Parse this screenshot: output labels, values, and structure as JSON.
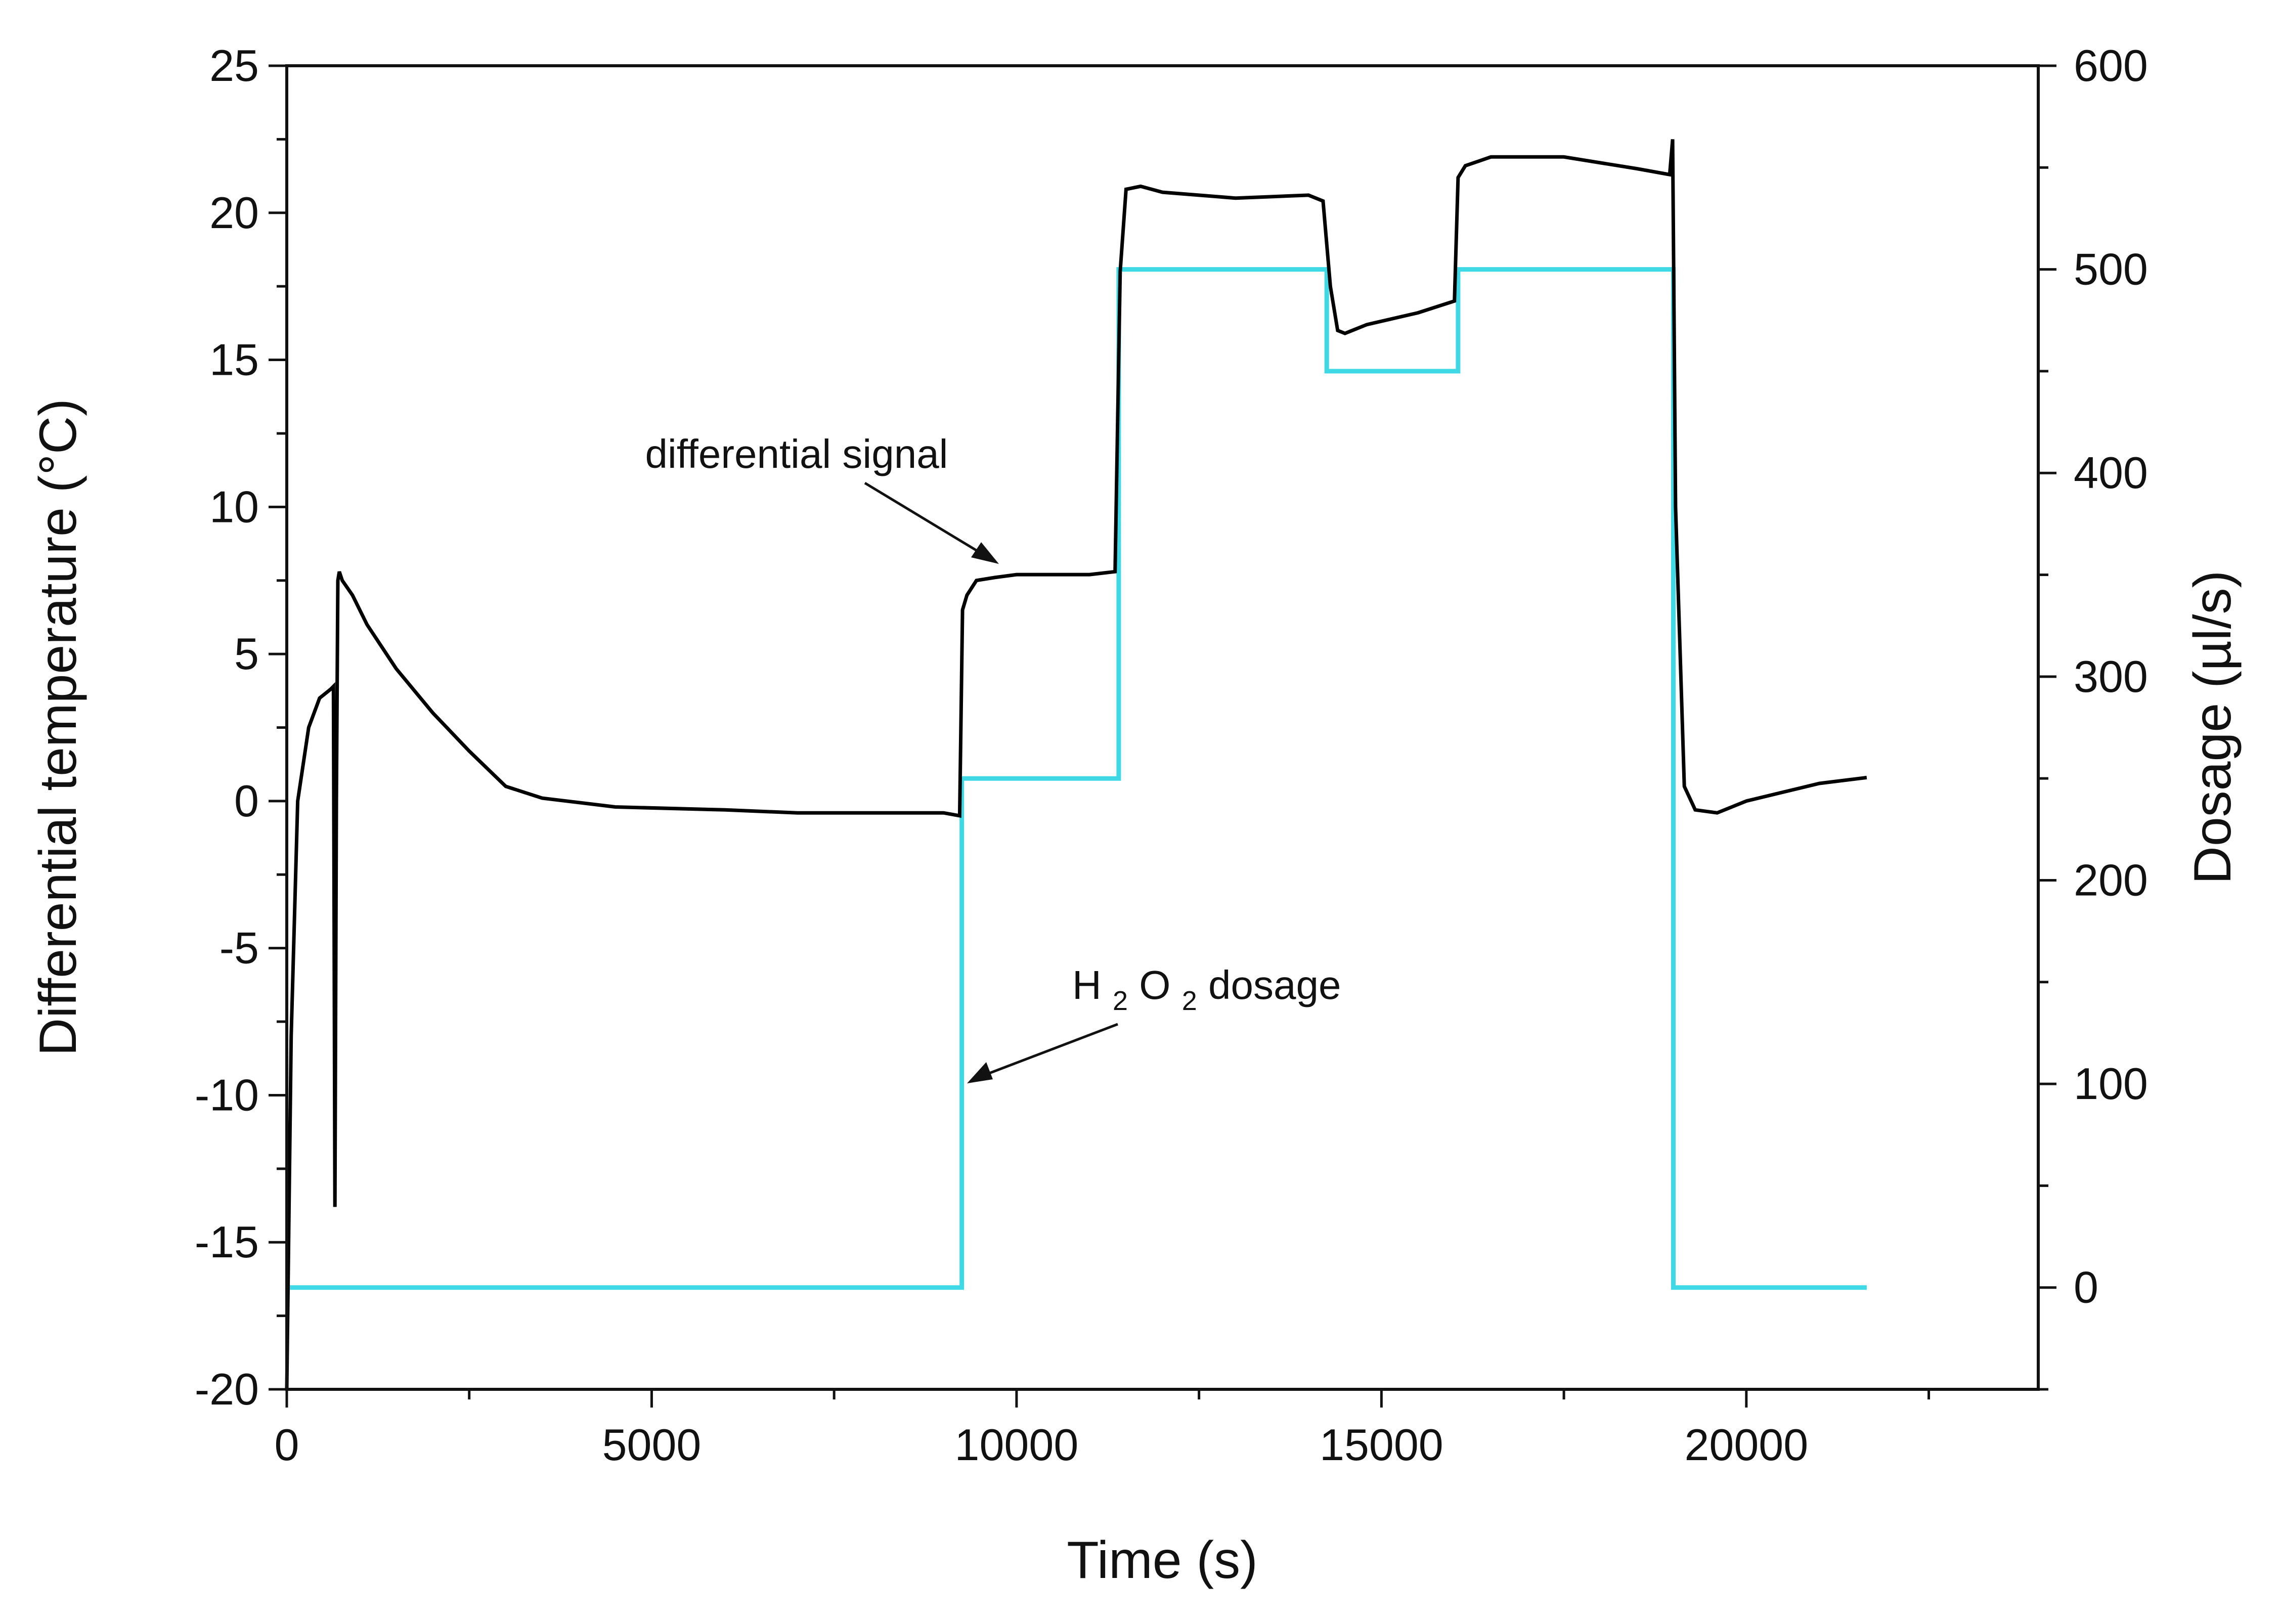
{
  "chart_data": {
    "type": "line",
    "title": "",
    "xlabel": "Time (s)",
    "ylabel_left": "Differential temperature (°C)",
    "ylabel_right": "Dosage (µl/s)",
    "xlim": [
      0,
      24000
    ],
    "ylim_left": [
      -20,
      25
    ],
    "ylim_right": [
      -50,
      600
    ],
    "x_ticks": [
      "0",
      "5000",
      "10000",
      "15000",
      "20000"
    ],
    "y_left_ticks": [
      "-20",
      "-15",
      "-10",
      "-5",
      "0",
      "5",
      "10",
      "15",
      "20",
      "25"
    ],
    "y_right_ticks": [
      "0",
      "100",
      "200",
      "300",
      "400",
      "500",
      "600"
    ],
    "grid": false,
    "series": [
      {
        "name": "differential signal",
        "axis": "left",
        "color": "#000000",
        "x": [
          0,
          60,
          150,
          300,
          450,
          600,
          640,
          660,
          680,
          700,
          720,
          760,
          900,
          1100,
          1500,
          2000,
          2500,
          3000,
          3500,
          4500,
          6000,
          7000,
          8000,
          9000,
          9220,
          9260,
          9320,
          9450,
          9700,
          10000,
          10500,
          11000,
          11350,
          11420,
          11500,
          11700,
          12000,
          13000,
          14000,
          14200,
          14300,
          14400,
          14500,
          14800,
          15500,
          16000,
          16050,
          16150,
          16500,
          17500,
          18500,
          18950,
          18990,
          19030,
          19150,
          19300,
          19600,
          20000,
          20500,
          21000,
          21650
        ],
        "y": [
          -20,
          -8,
          0,
          2.5,
          3.5,
          3.8,
          3.9,
          -13.8,
          0,
          7.5,
          7.8,
          7.5,
          7.0,
          6.0,
          4.5,
          3.0,
          1.7,
          0.5,
          0.1,
          -0.2,
          -0.3,
          -0.4,
          -0.4,
          -0.4,
          -0.5,
          6.5,
          7.0,
          7.5,
          7.6,
          7.7,
          7.7,
          7.7,
          7.8,
          18.0,
          20.8,
          20.9,
          20.7,
          20.5,
          20.6,
          20.4,
          17.5,
          16.0,
          15.9,
          16.2,
          16.6,
          17.0,
          21.2,
          21.6,
          21.9,
          21.9,
          21.5,
          21.3,
          22.5,
          10.0,
          0.5,
          -0.3,
          -0.4,
          0.0,
          0.3,
          0.6,
          0.8
        ]
      },
      {
        "name": "H2O2 dosage",
        "axis": "right",
        "color": "#3fd9e6",
        "x": [
          0,
          9250,
          9250,
          11400,
          11400,
          14250,
          14250,
          16050,
          16050,
          19000,
          19000,
          21650
        ],
        "y": [
          0,
          0,
          250,
          250,
          500,
          500,
          450,
          450,
          500,
          500,
          0,
          0
        ]
      }
    ],
    "annotations": [
      {
        "text": "differential signal",
        "points_to": {
          "x": 9700,
          "y": 8.2,
          "axis": "left"
        }
      },
      {
        "text_main": "H",
        "sub1": "2",
        "text_mid": "O",
        "sub2": "2",
        "text_end": " dosage",
        "points_to": {
          "x": 9250,
          "y": 100,
          "axis": "right"
        }
      }
    ]
  }
}
